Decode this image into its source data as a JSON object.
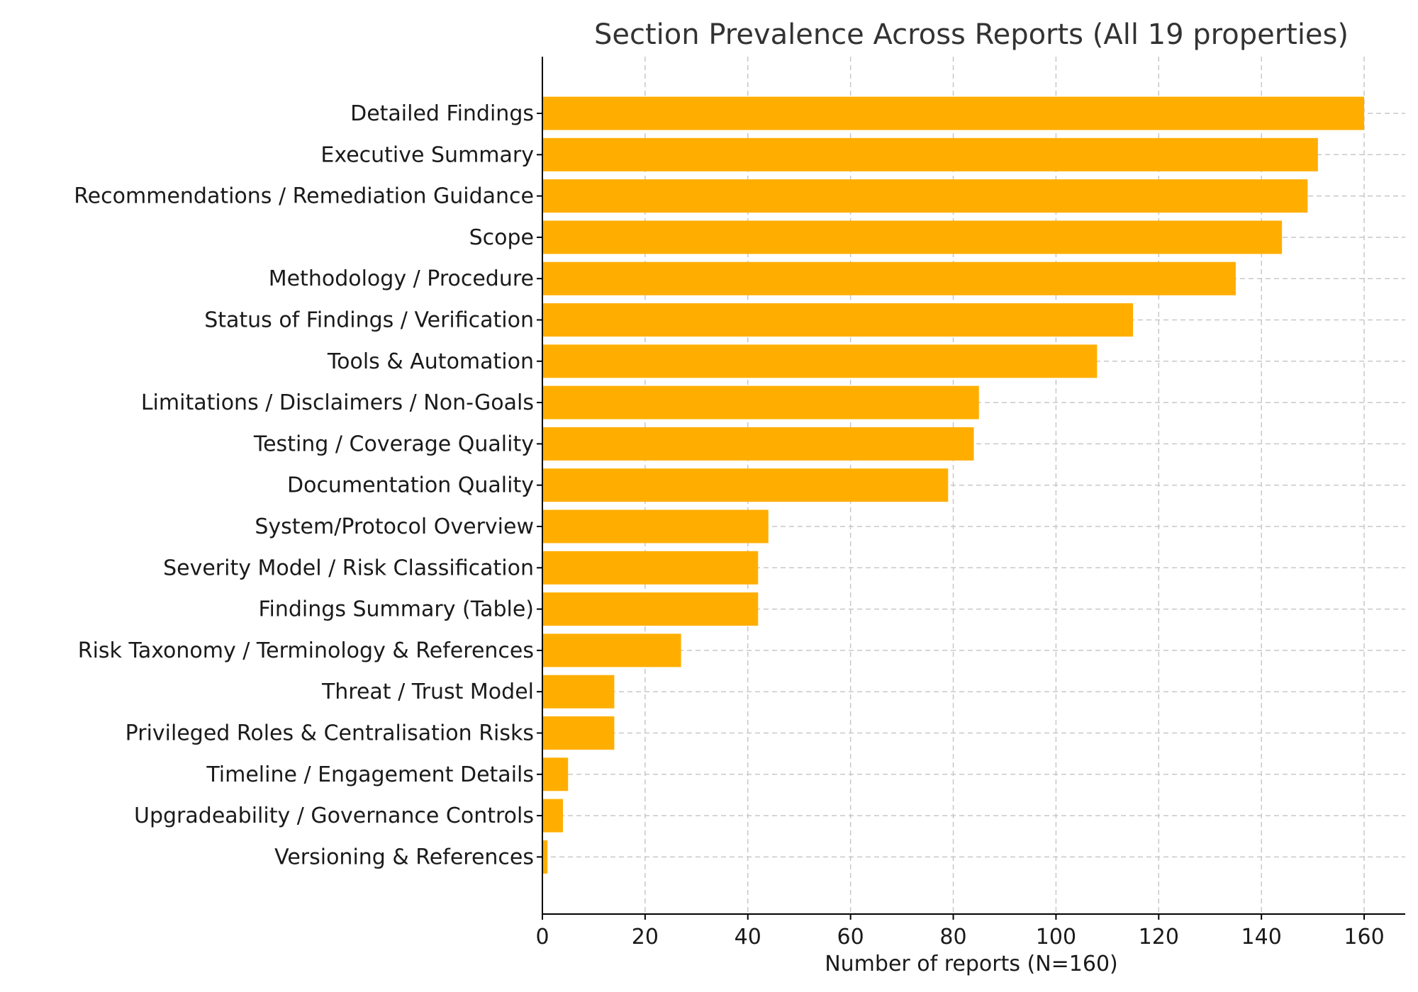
{
  "chart_data": {
    "type": "bar",
    "orientation": "horizontal",
    "title": "Section Prevalence Across Reports (All 19 properties)",
    "xlabel": "Number of reports (N=160)",
    "ylabel": "",
    "xlim": [
      0,
      168
    ],
    "xticks": [
      0,
      20,
      40,
      60,
      80,
      100,
      120,
      140,
      160
    ],
    "grid": true,
    "bar_color": "#FFAE00",
    "categories": [
      "Detailed Findings",
      "Executive Summary",
      "Recommendations / Remediation Guidance",
      "Scope",
      "Methodology / Procedure",
      "Status of Findings / Verification",
      "Tools & Automation",
      "Limitations / Disclaimers / Non-Goals",
      "Testing / Coverage Quality",
      "Documentation Quality",
      "System/Protocol Overview",
      "Severity Model / Risk Classification",
      "Findings Summary (Table)",
      "Risk Taxonomy / Terminology & References",
      "Threat / Trust Model",
      "Privileged Roles & Centralisation Risks",
      "Timeline / Engagement Details",
      "Upgradeability / Governance Controls",
      "Versioning & References"
    ],
    "values": [
      160,
      151,
      149,
      144,
      135,
      115,
      108,
      85,
      84,
      79,
      44,
      42,
      42,
      27,
      14,
      14,
      5,
      4,
      1
    ]
  }
}
